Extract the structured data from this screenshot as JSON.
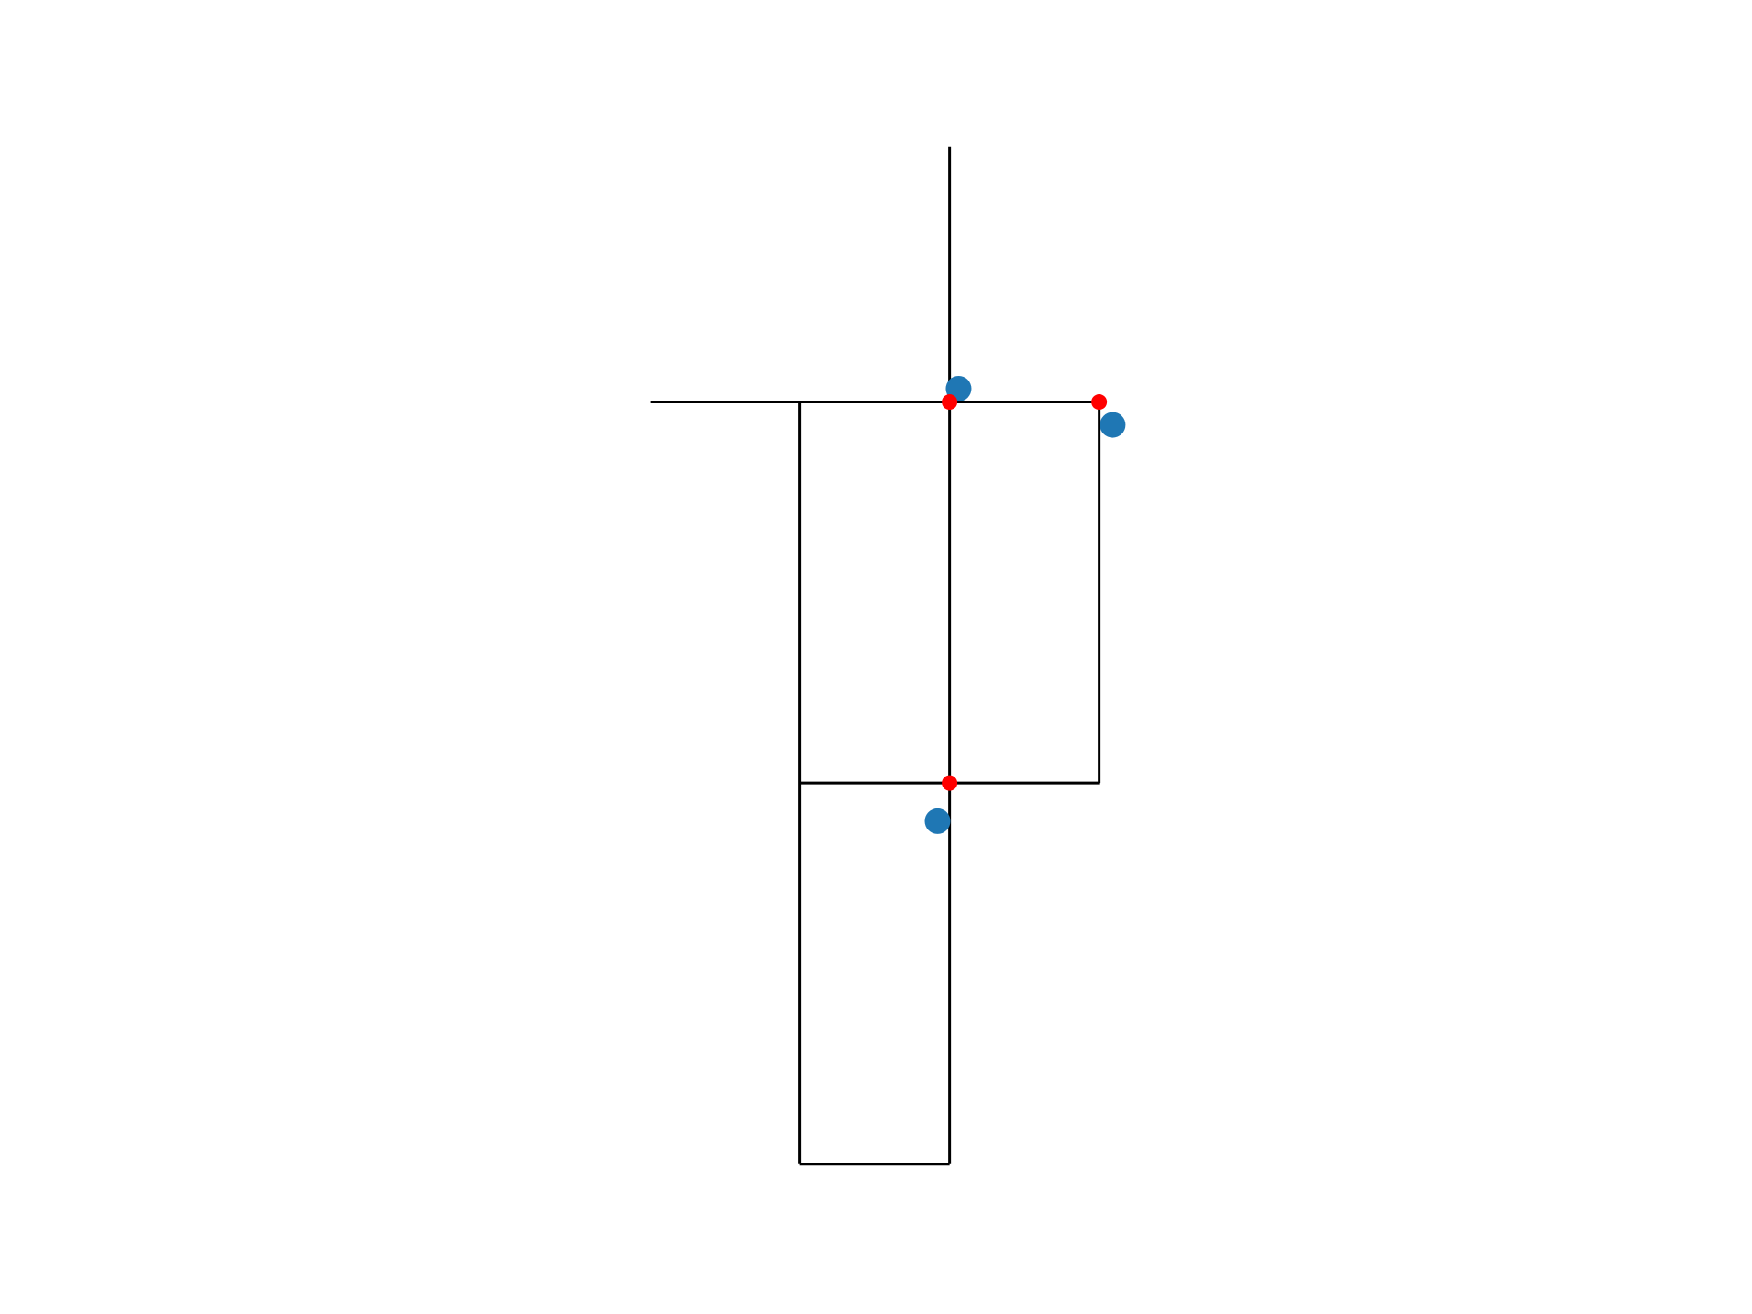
{
  "chart_data": {
    "type": "scatter",
    "xlim": [
      -2.15,
      1.24
    ],
    "ylim": [
      -2.13,
      0.8
    ],
    "segment_color": "black",
    "segments": [
      {
        "x": [
          0,
          0
        ],
        "y": [
          0.67,
          -2
        ]
      },
      {
        "x": [
          -2,
          1
        ],
        "y": [
          0,
          0
        ]
      },
      {
        "x": [
          -1,
          -1
        ],
        "y": [
          0,
          -2
        ]
      },
      {
        "x": [
          1,
          1
        ],
        "y": [
          0,
          -1
        ]
      },
      {
        "x": [
          -1,
          1
        ],
        "y": [
          -1,
          -1
        ]
      },
      {
        "x": [
          -1,
          0
        ],
        "y": [
          -2,
          -2
        ]
      }
    ],
    "series": [
      {
        "color": "#1f77b4",
        "x": [
          0.06,
          1.09,
          -0.08
        ],
        "y": [
          0.035,
          -0.06,
          -1.1
        ]
      },
      {
        "color": "#ff0000",
        "x": [
          0,
          1,
          0
        ],
        "y": [
          0,
          0,
          -1
        ]
      }
    ]
  }
}
